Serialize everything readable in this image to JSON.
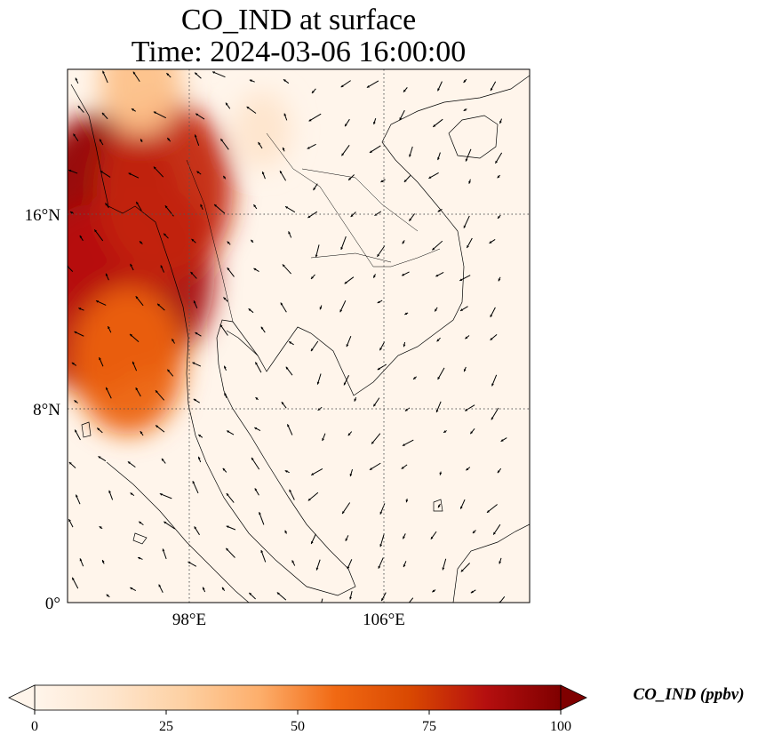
{
  "title_line1": "CO_IND at surface",
  "title_line2": "Time: 2024-03-06 16:00:00",
  "colorbar": {
    "label": "CO_IND (ppbv)",
    "min": 0,
    "max": 100,
    "ticks": [
      "0",
      "25",
      "50",
      "75",
      "100"
    ],
    "extend": "both",
    "colormap": [
      "#fff5eb",
      "#fee6ce",
      "#fdd0a2",
      "#fdae6b",
      "#f16913",
      "#d94801",
      "#b50f0f",
      "#7f0000"
    ]
  },
  "chart_data": {
    "type": "heatmap",
    "title": "CO_IND at surface",
    "subtitle": "Time: 2024-03-06 16:00:00",
    "variable": "CO_IND",
    "units": "ppbv",
    "level": "surface",
    "time": "2024-03-06 16:00:00",
    "x_ticks": [
      "98°E",
      "106°E"
    ],
    "y_ticks": [
      "0°",
      "8°N",
      "16°N"
    ],
    "lon_range": [
      93,
      112
    ],
    "lat_range": [
      0,
      22
    ],
    "grid": true,
    "gridline_style": "dotted",
    "overlay": "wind vectors",
    "plumes": [
      {
        "lon": 94.5,
        "lat": 16.0,
        "value": 95
      },
      {
        "lon": 96.0,
        "lat": 13.5,
        "value": 90
      },
      {
        "lon": 94.0,
        "lat": 12.5,
        "value": 85
      },
      {
        "lon": 97.0,
        "lat": 17.0,
        "value": 80
      },
      {
        "lon": 95.5,
        "lat": 10.0,
        "value": 60
      },
      {
        "lon": 96.0,
        "lat": 21.5,
        "value": 35
      },
      {
        "lon": 101.0,
        "lat": 19.5,
        "value": 15
      }
    ]
  }
}
